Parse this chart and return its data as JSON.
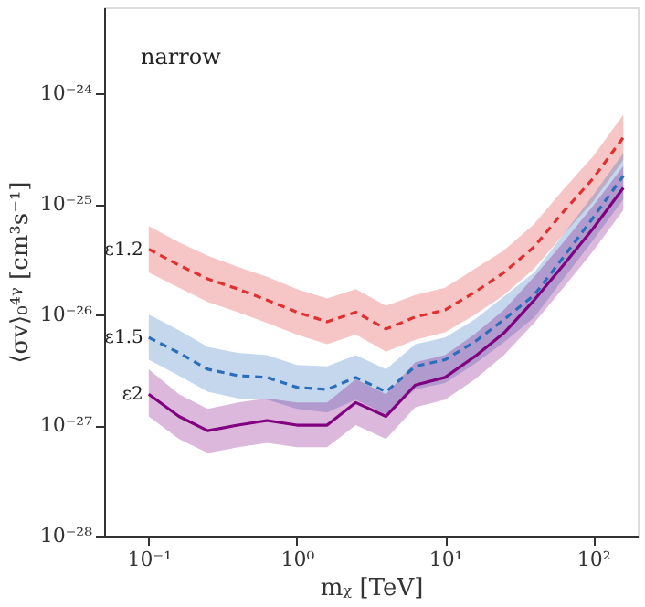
{
  "chart_data": {
    "type": "line",
    "xlabel": "mᵪ [TeV]",
    "ylabel": "⟨σv⟩₀⁴ᵞ [cm³s⁻¹]",
    "annotations": [
      "narrow"
    ],
    "x": [
      0.1,
      0.16,
      0.25,
      0.4,
      0.63,
      1,
      1.6,
      2.5,
      4,
      6.3,
      10,
      16,
      25,
      40,
      63,
      100,
      160
    ],
    "series": [
      {
        "name": "ε1.2",
        "color": "#e0302f",
        "line_style": "dashed",
        "values": [
          3.9e-26,
          2.8e-26,
          2.1e-26,
          1.7e-26,
          1.35e-26,
          1.05e-26,
          8.6e-27,
          1.05e-26,
          7.4e-27,
          9.5e-27,
          1.1e-26,
          1.6e-26,
          2.4e-26,
          4.1e-26,
          8.5e-26,
          1.7e-25,
          4e-25
        ],
        "lower": [
          2.4e-26,
          1.75e-26,
          1.3e-26,
          1.05e-26,
          8.4e-27,
          6.6e-27,
          5.4e-27,
          6.6e-27,
          4.6e-27,
          5.9e-27,
          6.9e-27,
          1e-26,
          1.5e-26,
          2.6e-26,
          5.3e-26,
          1.05e-25,
          2.5e-25
        ],
        "upper": [
          6.3e-26,
          4.5e-26,
          3.4e-26,
          2.7e-26,
          2.2e-26,
          1.7e-26,
          1.4e-26,
          1.7e-26,
          1.2e-26,
          1.5e-26,
          1.75e-26,
          2.6e-26,
          3.8e-26,
          6.6e-26,
          1.35e-25,
          2.7e-25,
          6.4e-25
        ]
      },
      {
        "name": "ε1.5",
        "color": "#2a6ebb",
        "line_style": "dashed",
        "values": [
          6.2e-27,
          4.5e-27,
          3.2e-27,
          2.8e-27,
          2.7e-27,
          2.2e-27,
          2.1e-27,
          2.7e-27,
          2e-27,
          3.4e-27,
          3.9e-27,
          5.7e-27,
          9e-27,
          1.5e-26,
          3.3e-26,
          7.5e-26,
          1.8e-25
        ],
        "lower": [
          3.9e-27,
          2.8e-27,
          2e-27,
          1.75e-27,
          1.7e-27,
          1.4e-27,
          1.3e-27,
          1.7e-27,
          1.25e-27,
          2.1e-27,
          2.4e-27,
          3.6e-27,
          5.6e-27,
          9.4e-27,
          2.1e-26,
          4.7e-26,
          1.1e-25
        ],
        "upper": [
          1e-26,
          7.2e-27,
          5.1e-27,
          4.5e-27,
          4.3e-27,
          3.5e-27,
          3.4e-27,
          4.3e-27,
          3.2e-27,
          5.4e-27,
          6.2e-27,
          9.1e-27,
          1.45e-26,
          2.4e-26,
          5.3e-26,
          1.2e-25,
          2.9e-25
        ]
      },
      {
        "name": "ε2",
        "color": "#800080",
        "line_style": "solid",
        "values": [
          1.9e-27,
          1.2e-27,
          8.9e-28,
          1e-27,
          1.1e-27,
          1e-27,
          1e-27,
          1.6e-27,
          1.2e-27,
          2.3e-27,
          2.7e-27,
          4.2e-27,
          6.8e-27,
          1.35e-26,
          2.8e-26,
          6e-26,
          1.4e-25
        ],
        "lower": [
          1.2e-27,
          7.5e-28,
          5.6e-28,
          6.3e-28,
          6.9e-28,
          6.3e-28,
          6.3e-28,
          1e-27,
          7.5e-28,
          1.45e-27,
          1.7e-27,
          2.6e-27,
          4.3e-27,
          8.4e-27,
          1.75e-26,
          3.75e-26,
          8.8e-26
        ],
        "upper": [
          3.2e-27,
          1.9e-27,
          1.4e-27,
          1.6e-27,
          1.75e-27,
          1.6e-27,
          1.6e-27,
          2.6e-27,
          1.9e-27,
          3.7e-27,
          4.3e-27,
          6.7e-27,
          1.1e-26,
          2.2e-26,
          4.5e-26,
          9.6e-26,
          2.2e-25
        ]
      }
    ],
    "log": "xy",
    "xlim": [
      0.05,
      200
    ],
    "ylim": [
      1e-28,
      6e-24
    ],
    "xticks": [
      {
        "value": 0.1,
        "label": "10⁻¹"
      },
      {
        "value": 1,
        "label": "10⁰"
      },
      {
        "value": 10,
        "label": "10¹"
      },
      {
        "value": 100,
        "label": "10²"
      }
    ],
    "yticks": [
      {
        "value": 1e-28,
        "label": "10⁻²⁸"
      },
      {
        "value": 1e-27,
        "label": "10⁻²⁷"
      },
      {
        "value": 1e-26,
        "label": "10⁻²⁶"
      },
      {
        "value": 1e-25,
        "label": "10⁻²⁵"
      },
      {
        "value": 1e-24,
        "label": "10⁻²⁴"
      }
    ],
    "grid": false
  }
}
